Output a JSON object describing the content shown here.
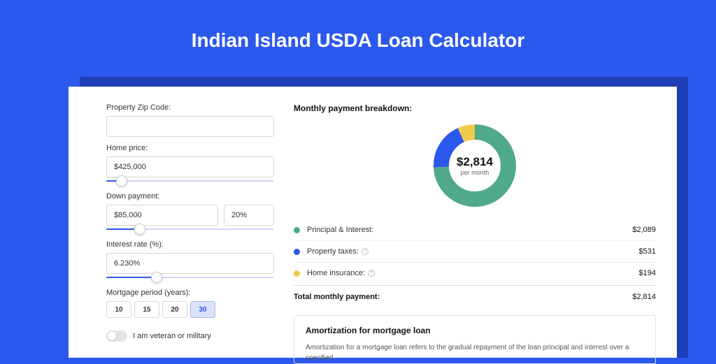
{
  "page": {
    "title": "Indian Island USDA Loan Calculator",
    "bg_color": "#2b58ed",
    "panel_shadow_color": "#1e3fb8",
    "panel_bg": "#ffffff"
  },
  "form": {
    "zip": {
      "label": "Property Zip Code:",
      "value": ""
    },
    "home_price": {
      "label": "Home price:",
      "value": "$425,000",
      "slider_pct": 9
    },
    "down_payment": {
      "label": "Down payment:",
      "value": "$85,000",
      "pct": "20%",
      "slider_pct": 20
    },
    "interest": {
      "label": "Interest rate (%):",
      "value": "6.230%",
      "slider_pct": 30
    },
    "period": {
      "label": "Mortgage period (years):",
      "options": [
        "10",
        "15",
        "20",
        "30"
      ],
      "selected": "30"
    },
    "veteran": {
      "label": "I am veteran or military",
      "checked": false
    }
  },
  "breakdown": {
    "title": "Monthly payment breakdown:",
    "center_amount": "$2,814",
    "center_sub": "per month",
    "donut": {
      "segments": [
        {
          "key": "principal_interest",
          "pct": 74.2,
          "color": "#4fa98a"
        },
        {
          "key": "property_taxes",
          "pct": 18.9,
          "color": "#2b58ed"
        },
        {
          "key": "home_insurance",
          "pct": 6.9,
          "color": "#f0ca4d"
        }
      ],
      "stroke_width": 22,
      "radius": 48
    },
    "items": [
      {
        "label": "Principal & Interest:",
        "value": "$2,089",
        "color": "#4fa98a",
        "info": false
      },
      {
        "label": "Property taxes:",
        "value": "$531",
        "color": "#2b58ed",
        "info": true
      },
      {
        "label": "Home insurance:",
        "value": "$194",
        "color": "#f0ca4d",
        "info": true
      }
    ],
    "total": {
      "label": "Total monthly payment:",
      "value": "$2,814"
    }
  },
  "amort": {
    "title": "Amortization for mortgage loan",
    "text": "Amortization for a mortgage loan refers to the gradual repayment of the loan principal and interest over a specified"
  }
}
